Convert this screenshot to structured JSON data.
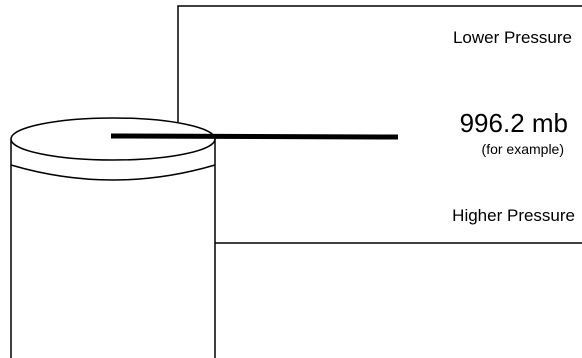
{
  "labels": {
    "lower_pressure": "Lower Pressure",
    "reading": "996.2 mb",
    "reading_note": "(for example)",
    "higher_pressure": "Higher Pressure"
  },
  "colors": {
    "stroke": "#000000",
    "background": "#ffffff"
  }
}
